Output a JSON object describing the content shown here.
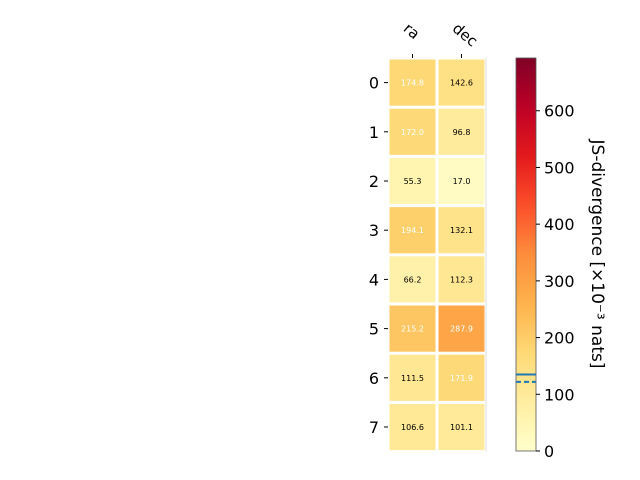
{
  "chart_data": {
    "type": "heatmap",
    "columns": [
      "ra",
      "dec"
    ],
    "rows": [
      "0",
      "1",
      "2",
      "3",
      "4",
      "5",
      "6",
      "7"
    ],
    "values": [
      [
        174.8,
        142.6
      ],
      [
        172.0,
        96.8
      ],
      [
        55.3,
        17.0
      ],
      [
        194.1,
        132.1
      ],
      [
        66.2,
        112.3
      ],
      [
        215.2,
        287.9
      ],
      [
        111.5,
        171.9
      ],
      [
        106.6,
        101.1
      ]
    ],
    "cell_labels": [
      [
        "174.8",
        "142.6"
      ],
      [
        "172.0",
        "96.8"
      ],
      [
        "55.3",
        "17.0"
      ],
      [
        "194.1",
        "132.1"
      ],
      [
        "66.2",
        "112.3"
      ],
      [
        "215.2",
        "287.9"
      ],
      [
        "111.5",
        "171.9"
      ],
      [
        "106.6",
        "101.1"
      ]
    ],
    "colormap": "YlOrRd",
    "colorbar": {
      "label": "JS-divergence [×10⁻³ nats]",
      "range": [
        0,
        693
      ],
      "ticks": [
        0,
        100,
        200,
        300,
        400,
        500,
        600
      ],
      "tick_labels": [
        "0",
        "100",
        "200",
        "300",
        "400",
        "500",
        "600"
      ],
      "reference_lines": [
        {
          "value": 135,
          "style": "solid",
          "color": "#1f77b4"
        },
        {
          "value": 122,
          "style": "dashed",
          "color": "#1f77b4"
        }
      ]
    },
    "label_text_colors": {
      "light": "#ffffff",
      "dark": "#000000"
    },
    "white_label_threshold": 150
  }
}
